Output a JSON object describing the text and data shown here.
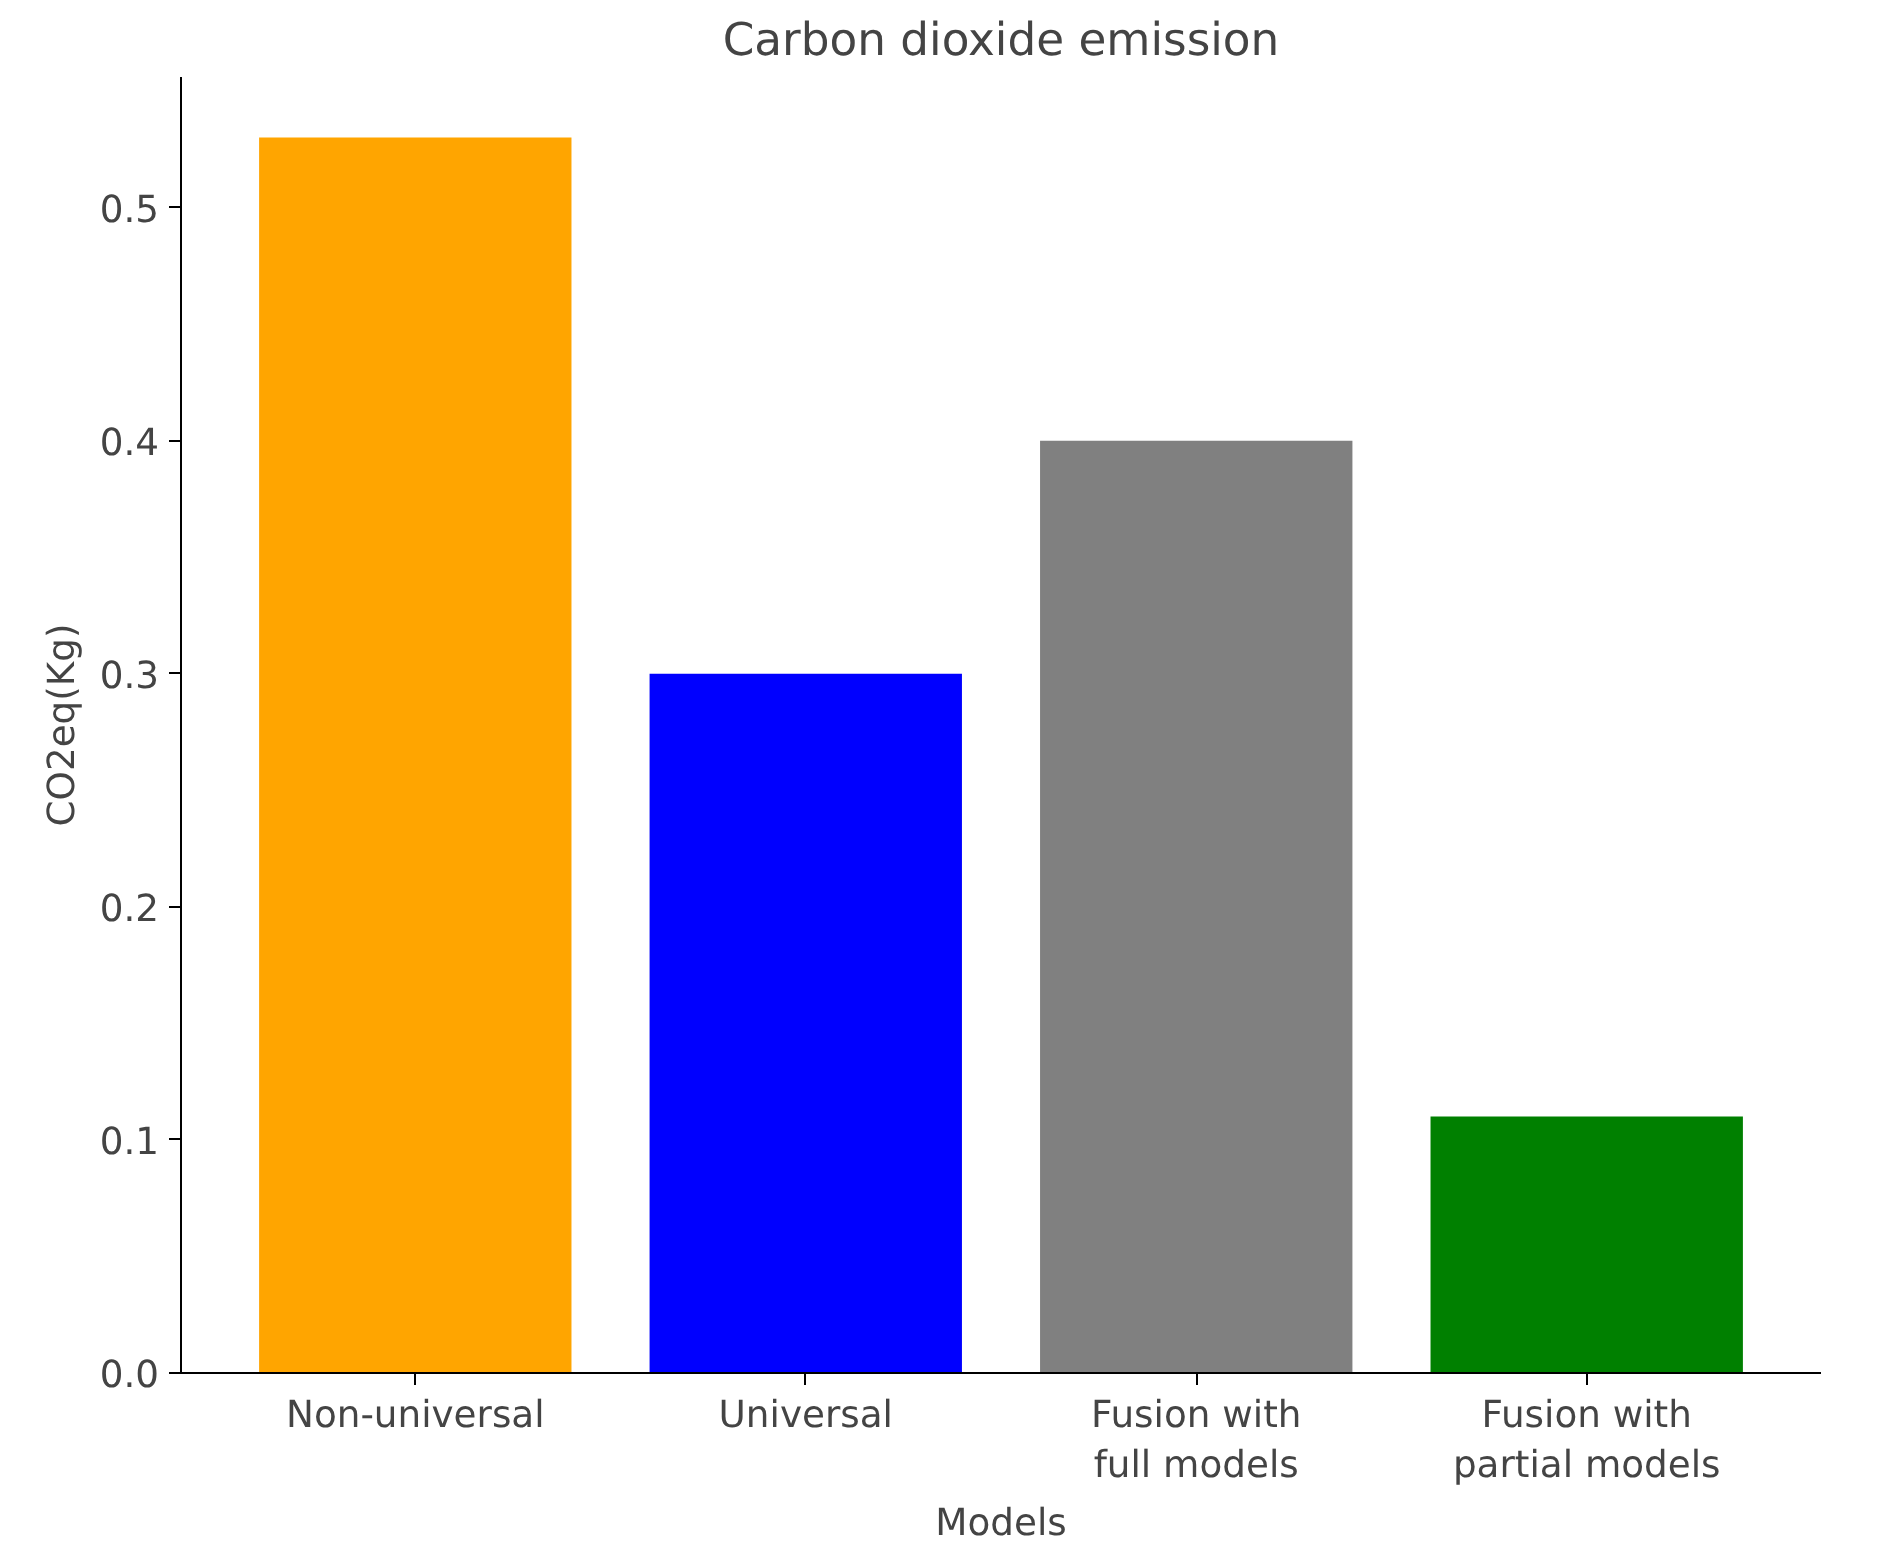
{
  "chart_data": {
    "type": "bar",
    "title": "Carbon dioxide emission",
    "xlabel": "Models",
    "ylabel": "CO2eq(Kg)",
    "categories": [
      "Non-universal",
      "Universal",
      "Fusion with full models",
      "Fusion with partial models"
    ],
    "values": [
      0.53,
      0.3,
      0.4,
      0.11
    ],
    "colors": [
      "#ffa500",
      "#0000ff",
      "#808080",
      "#008000"
    ],
    "ylim": [
      0,
      0.556
    ],
    "yticks": [
      {
        "value": 0,
        "label": "0.0"
      },
      0.1,
      0.2,
      0.3,
      0.4,
      0.5
    ],
    "grid": false
  }
}
